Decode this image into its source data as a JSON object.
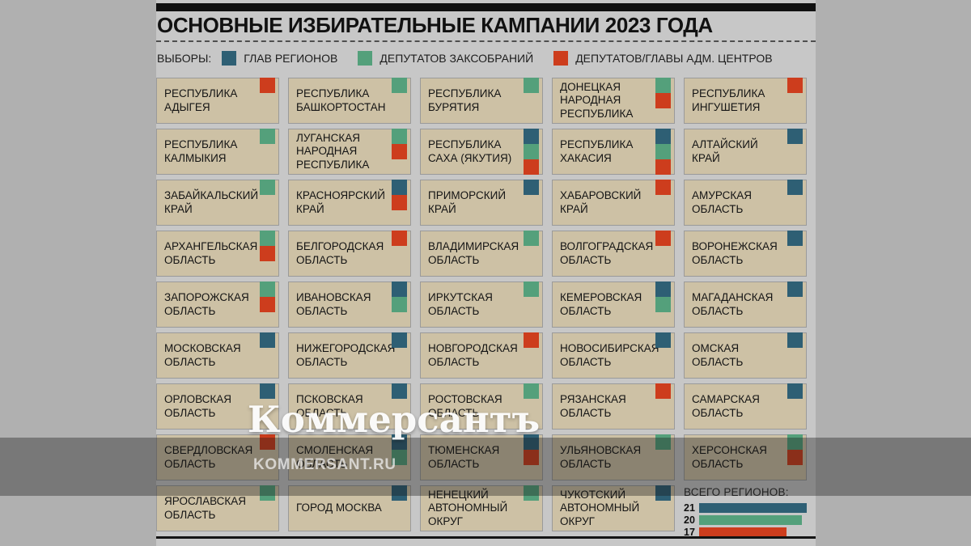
{
  "title": "ОСНОВНЫЕ ИЗБИРАТЕЛЬНЫЕ КАМПАНИИ 2023 ГОДА",
  "colors": {
    "blue": "#2e5f74",
    "green": "#54a07b",
    "red": "#cd3d1d",
    "card_bg": "#cdc1a5",
    "panel_bg": "#c7c7c7",
    "page_bg": "#b0b0b0"
  },
  "legend": {
    "prefix": "ВЫБОРЫ:",
    "items": [
      {
        "label": "ГЛАВ РЕГИОНОВ",
        "color": "blue"
      },
      {
        "label": "ДЕПУТАТОВ ЗАКСОБРАНИЙ",
        "color": "green"
      },
      {
        "label": "ДЕПУТАТОВ/ГЛАВЫ АДМ. ЦЕНТРОВ",
        "color": "red"
      }
    ]
  },
  "regions": [
    {
      "name": "РЕСПУБЛИКА АДЫГЕЯ",
      "marks": [
        "red"
      ]
    },
    {
      "name": "РЕСПУБЛИКА БАШКОРТОСТАН",
      "marks": [
        "green"
      ]
    },
    {
      "name": "РЕСПУБЛИКА БУРЯТИЯ",
      "marks": [
        "green"
      ]
    },
    {
      "name": "ДОНЕЦКАЯ НАРОДНАЯ РЕСПУБЛИКА",
      "marks": [
        "green",
        "red"
      ]
    },
    {
      "name": "РЕСПУБЛИКА ИНГУШЕТИЯ",
      "marks": [
        "red"
      ]
    },
    {
      "name": "РЕСПУБЛИКА КАЛМЫКИЯ",
      "marks": [
        "green"
      ]
    },
    {
      "name": "ЛУГАНСКАЯ НАРОДНАЯ РЕСПУБЛИКА",
      "marks": [
        "green",
        "red"
      ]
    },
    {
      "name": "РЕСПУБЛИКА САХА (ЯКУТИЯ)",
      "marks": [
        "blue",
        "green",
        "red"
      ]
    },
    {
      "name": "РЕСПУБЛИКА ХАКАСИЯ",
      "marks": [
        "blue",
        "green",
        "red"
      ]
    },
    {
      "name": "АЛТАЙСКИЙ КРАЙ",
      "marks": [
        "blue"
      ]
    },
    {
      "name": "ЗАБАЙКАЛЬСКИЙ КРАЙ",
      "marks": [
        "green"
      ]
    },
    {
      "name": "КРАСНОЯРСКИЙ КРАЙ",
      "marks": [
        "blue",
        "red"
      ]
    },
    {
      "name": "ПРИМОРСКИЙ КРАЙ",
      "marks": [
        "blue"
      ]
    },
    {
      "name": "ХАБАРОВСКИЙ КРАЙ",
      "marks": [
        "red"
      ]
    },
    {
      "name": "АМУРСКАЯ ОБЛАСТЬ",
      "marks": [
        "blue"
      ]
    },
    {
      "name": "АРХАНГЕЛЬСКАЯ ОБЛАСТЬ",
      "marks": [
        "green",
        "red"
      ]
    },
    {
      "name": "БЕЛГОРОДСКАЯ ОБЛАСТЬ",
      "marks": [
        "red"
      ]
    },
    {
      "name": "ВЛАДИМИРСКАЯ ОБЛАСТЬ",
      "marks": [
        "green"
      ]
    },
    {
      "name": "ВОЛГОГРАДСКАЯ ОБЛАСТЬ",
      "marks": [
        "red"
      ]
    },
    {
      "name": "ВОРОНЕЖСКАЯ ОБЛАСТЬ",
      "marks": [
        "blue"
      ]
    },
    {
      "name": "ЗАПОРОЖСКАЯ ОБЛАСТЬ",
      "marks": [
        "green",
        "red"
      ]
    },
    {
      "name": "ИВАНОВСКАЯ ОБЛАСТЬ",
      "marks": [
        "blue",
        "green"
      ]
    },
    {
      "name": "ИРКУТСКАЯ ОБЛАСТЬ",
      "marks": [
        "green"
      ]
    },
    {
      "name": "КЕМЕРОВСКАЯ ОБЛАСТЬ",
      "marks": [
        "blue",
        "green"
      ]
    },
    {
      "name": "МАГАДАНСКАЯ ОБЛАСТЬ",
      "marks": [
        "blue"
      ]
    },
    {
      "name": "МОСКОВСКАЯ ОБЛАСТЬ",
      "marks": [
        "blue"
      ]
    },
    {
      "name": "НИЖЕГОРОДСКАЯ ОБЛАСТЬ",
      "marks": [
        "blue"
      ]
    },
    {
      "name": "НОВГОРОДСКАЯ ОБЛАСТЬ",
      "marks": [
        "red"
      ]
    },
    {
      "name": "НОВОСИБИРСКАЯ ОБЛАСТЬ",
      "marks": [
        "blue"
      ]
    },
    {
      "name": "ОМСКАЯ ОБЛАСТЬ",
      "marks": [
        "blue"
      ]
    },
    {
      "name": "ОРЛОВСКАЯ ОБЛАСТЬ",
      "marks": [
        "blue"
      ]
    },
    {
      "name": "ПСКОВСКАЯ ОБЛАСТЬ",
      "marks": [
        "blue"
      ]
    },
    {
      "name": "РОСТОВСКАЯ ОБЛАСТЬ",
      "marks": [
        "green"
      ]
    },
    {
      "name": "РЯЗАНСКАЯ ОБЛАСТЬ",
      "marks": [
        "red"
      ]
    },
    {
      "name": "САМАРСКАЯ ОБЛАСТЬ",
      "marks": [
        "blue"
      ]
    },
    {
      "name": "СВЕРДЛОВСКАЯ ОБЛАСТЬ",
      "marks": [
        "red"
      ]
    },
    {
      "name": "СМОЛЕНСКАЯ ОБЛАСТЬ",
      "marks": [
        "blue",
        "green"
      ]
    },
    {
      "name": "ТЮМЕНСКАЯ ОБЛАСТЬ",
      "marks": [
        "blue",
        "red"
      ]
    },
    {
      "name": "УЛЬЯНОВСКАЯ ОБЛАСТЬ",
      "marks": [
        "green"
      ]
    },
    {
      "name": "ХЕРСОНСКАЯ ОБЛАСТЬ",
      "marks": [
        "green",
        "red"
      ]
    },
    {
      "name": "ЯРОСЛАВСКАЯ ОБЛАСТЬ",
      "marks": [
        "green"
      ]
    },
    {
      "name": "ГОРОД МОСКВА",
      "marks": [
        "blue"
      ]
    },
    {
      "name": "НЕНЕЦКИЙ АВТОНОМНЫЙ ОКРУГ",
      "marks": [
        "green"
      ]
    },
    {
      "name": "ЧУКОТСКИЙ АВТОНОМНЫЙ ОКРУГ",
      "marks": [
        "blue"
      ]
    }
  ],
  "totals": {
    "heading": "ВСЕГО РЕГИОНОВ:",
    "bars": [
      {
        "value": 21,
        "color": "blue"
      },
      {
        "value": 20,
        "color": "green"
      },
      {
        "value": 17,
        "color": "red"
      }
    ]
  },
  "watermark": {
    "logo": "Коммерсантъ",
    "site": "KOMMERSANT.RU"
  },
  "chart_data": {
    "type": "bar",
    "title": "ВСЕГО РЕГИОНОВ:",
    "orientation": "horizontal",
    "categories": [
      "ГЛАВ РЕГИОНОВ",
      "ДЕПУТАТОВ ЗАКСОБРАНИЙ",
      "ДЕПУТАТОВ/ГЛАВЫ АДМ. ЦЕНТРОВ"
    ],
    "values": [
      21,
      20,
      17
    ],
    "colors": [
      "#2e5f74",
      "#54a07b",
      "#cd3d1d"
    ],
    "xlim": [
      0,
      21
    ],
    "legend_position": "top",
    "grid": false
  }
}
